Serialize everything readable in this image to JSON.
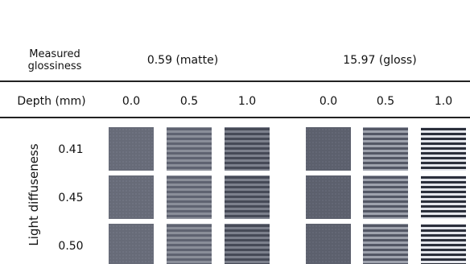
{
  "header": {
    "label": "Measured glossiness",
    "groups": [
      "0.59 (matte)",
      "15.97 (gloss)"
    ]
  },
  "depth": {
    "label": "Depth (mm)",
    "values": [
      "0.0",
      "0.5",
      "1.0",
      "0.0",
      "0.5",
      "1.0"
    ]
  },
  "rows": {
    "label": "Light diffuseness",
    "values": [
      "0.41",
      "0.45",
      "0.50"
    ]
  }
}
